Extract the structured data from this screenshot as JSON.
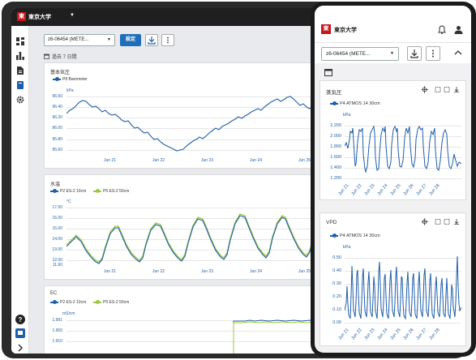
{
  "tablet": {
    "univ_label": "東京大学",
    "logo_char": "東",
    "device_select": "z6-06454 (METE...",
    "set_button": "設定",
    "date_range": "過去 7 日間",
    "x_ticks": [
      "Jun 21",
      "Jun 22",
      "Jun 23",
      "Jun 24",
      "Jun 25"
    ],
    "charts": [
      {
        "title": "基本気圧",
        "legend": [
          {
            "name": "P8 Barometer",
            "color": "#1f5fa8"
          }
        ],
        "unit": "kPa",
        "y_ticks": [
          "96.60",
          "96.40",
          "96.20",
          "96.00",
          "95.80",
          "95.60"
        ]
      },
      {
        "title": "水温",
        "legend": [
          {
            "name": "P2 ES-2 10cm",
            "color": "#1f5fa8"
          },
          {
            "name": "P5 ES-2 50cm",
            "color": "#9cc93b"
          }
        ],
        "unit": "°C",
        "y_ticks": [
          "17.00",
          "16.00",
          "15.00",
          "14.00",
          "13.00",
          "12.00",
          "11.60"
        ]
      },
      {
        "title": "EC",
        "legend": [
          {
            "name": "P2 ES-2 10cm",
            "color": "#1f5fa8"
          },
          {
            "name": "P5 ES-2 50cm",
            "color": "#9cc93b"
          }
        ],
        "unit": "mS/cm",
        "y_ticks": [
          "1.991",
          "1.950",
          "1.910"
        ]
      }
    ]
  },
  "phone": {
    "univ_label": "東京大学",
    "logo_char": "東",
    "device_select": "z6-06454 (METE...",
    "x_ticks": [
      "Jun 21",
      "Jun 22",
      "Jun 23",
      "Jun 24",
      "Jun 25",
      "Jun 26",
      "Jun 27",
      "Jun 28"
    ],
    "charts": [
      {
        "title": "蒸気圧",
        "legend": "P4 ATMOS 14 30cm",
        "unit": "kPa",
        "y_ticks": [
          "2.200",
          "2.000",
          "1.800",
          "1.600",
          "1.400",
          "1.200"
        ]
      },
      {
        "title": "VPD",
        "legend": "P4 ATMOS 14 30cm",
        "unit": "kPa",
        "y_ticks": [
          "0.50",
          "0.40",
          "0.30",
          "0.20",
          "0.10",
          "0.00"
        ]
      }
    ]
  },
  "colors": {
    "series_blue": "#1f5fa8",
    "series_green": "#9cc93b",
    "brand_red": "#c4161c",
    "button_blue": "#1f6fb8"
  }
}
